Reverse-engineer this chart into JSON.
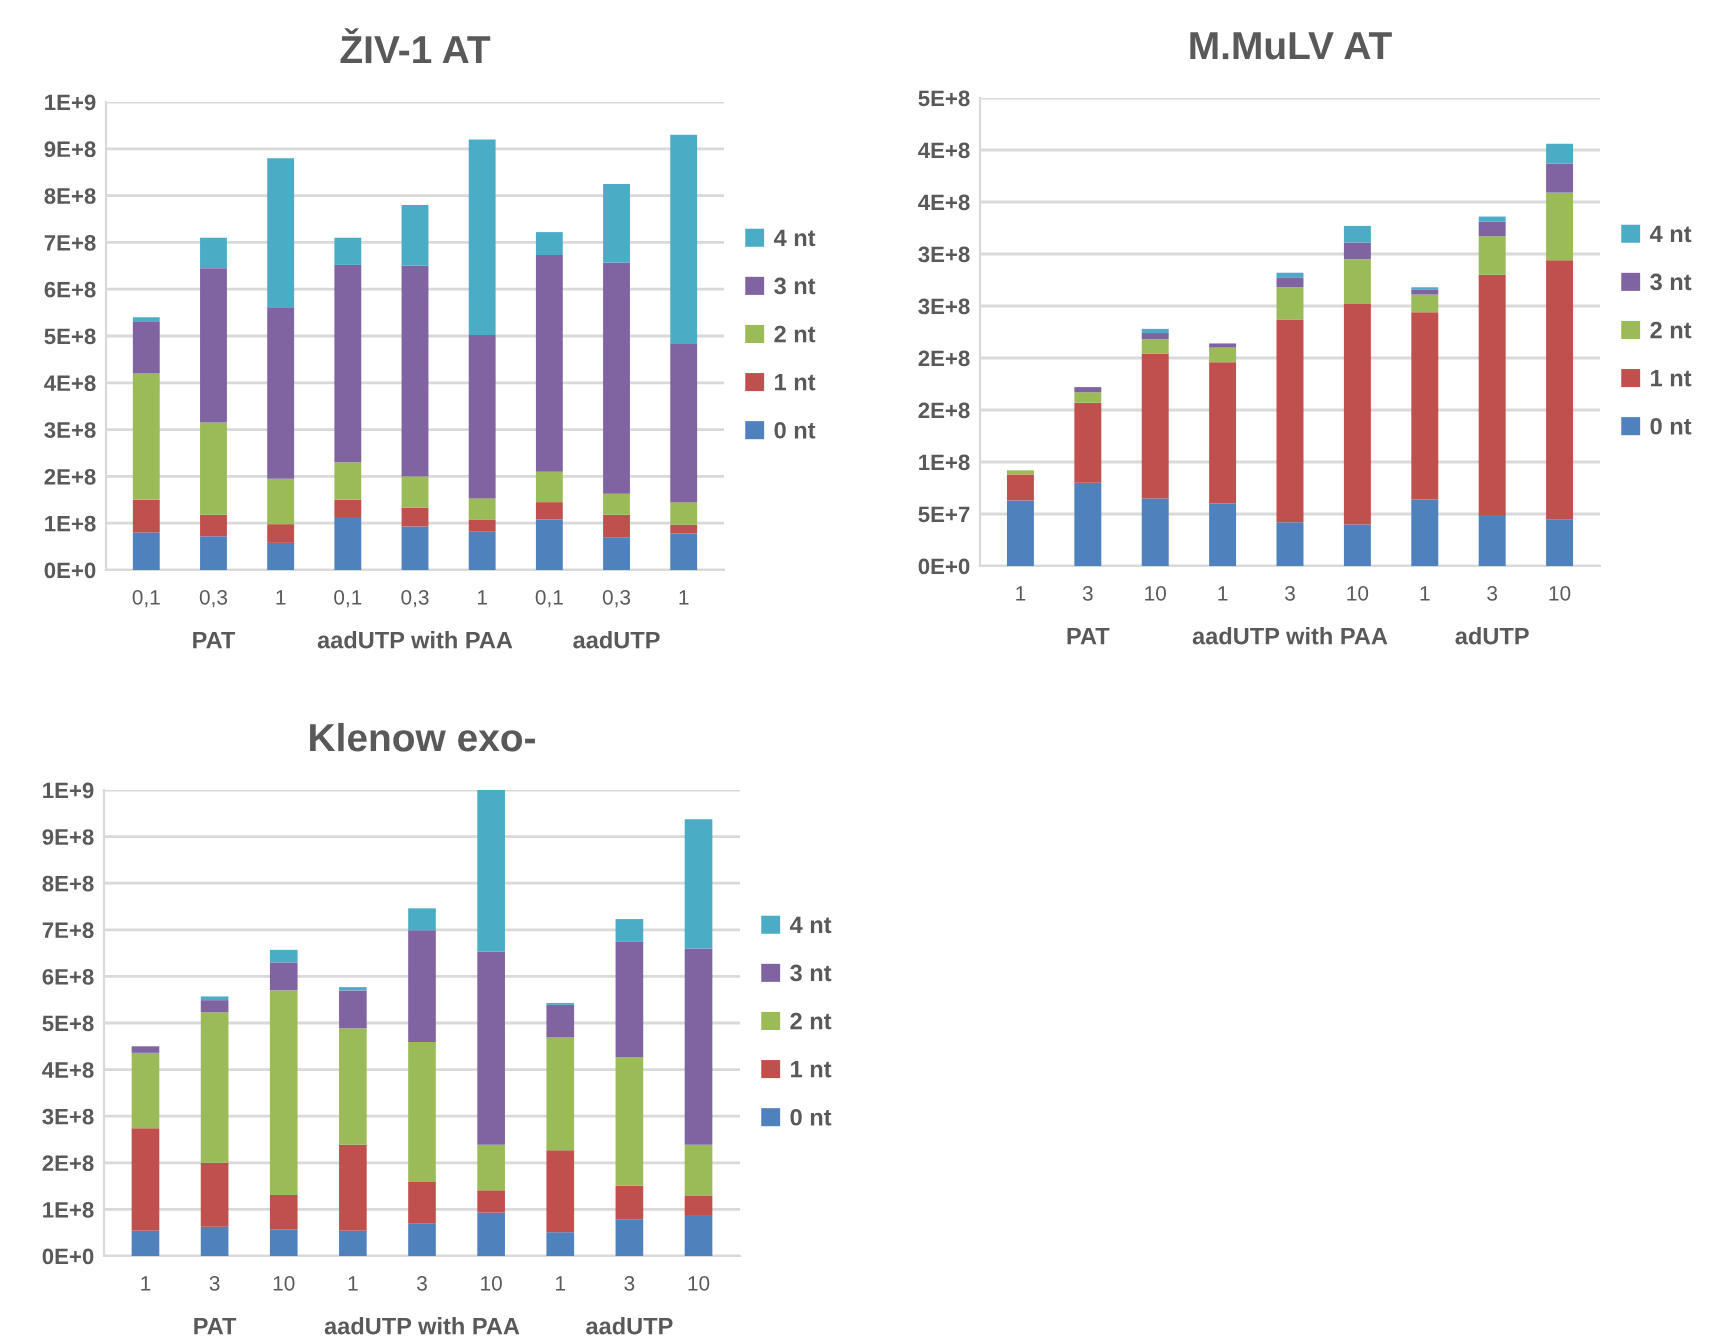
{
  "chart_data": [
    {
      "type": "bar",
      "title": "ŽIV-1 AT",
      "stacked": true,
      "grid": "y",
      "legend": "right",
      "categories": [
        "0,1",
        "0,3",
        "1",
        "0,1",
        "0,3",
        "1",
        "0,1",
        "0,3",
        "1"
      ],
      "series": [
        {
          "name": "0 nt",
          "color": "#4f81bd",
          "values": [
            80000000.0,
            72000000.0,
            58000000.0,
            113000000.0,
            93000000.0,
            82000000.0,
            108000000.0,
            70000000.0,
            78000000.0
          ]
        },
        {
          "name": "1 nt",
          "color": "#c0504d",
          "values": [
            70000000.0,
            46000000.0,
            40000000.0,
            37000000.0,
            40000000.0,
            25000000.0,
            37000000.0,
            48000000.0,
            19000000.0
          ]
        },
        {
          "name": "2 nt",
          "color": "#9bbb59",
          "values": [
            270000000.0,
            197000000.0,
            97000000.0,
            80000000.0,
            67000000.0,
            46000000.0,
            65000000.0,
            45000000.0,
            48000000.0
          ]
        },
        {
          "name": "3 nt",
          "color": "#8064a2",
          "values": [
            110000000.0,
            330000000.0,
            365000000.0,
            422000000.0,
            450000000.0,
            349000000.0,
            463000000.0,
            494000000.0,
            338000000.0
          ]
        },
        {
          "name": "4 nt",
          "color": "#4bacc6",
          "values": [
            10000000.0,
            65000000.0,
            320000000.0,
            58000000.0,
            130000000.0,
            418000000.0,
            49000000.0,
            168000000.0,
            447000000.0
          ]
        }
      ],
      "ylim": [
        0,
        1000000000.0
      ],
      "yticks": [
        {
          "value": 0,
          "label": "0E+0"
        },
        {
          "value": 100000000.0,
          "label": "1E+8"
        },
        {
          "value": 200000000.0,
          "label": "2E+8"
        },
        {
          "value": 300000000.0,
          "label": "3E+8"
        },
        {
          "value": 400000000.0,
          "label": "4E+8"
        },
        {
          "value": 500000000.0,
          "label": "5E+8"
        },
        {
          "value": 600000000.0,
          "label": "6E+8"
        },
        {
          "value": 700000000.0,
          "label": "7E+8"
        },
        {
          "value": 800000000.0,
          "label": "8E+8"
        },
        {
          "value": 900000000.0,
          "label": "9E+8"
        },
        {
          "value": 1000000000.0,
          "label": "1E+9"
        }
      ],
      "annotations": [
        "PAT",
        "aadUTP with PAA",
        "aadUTP"
      ]
    },
    {
      "type": "bar",
      "title": "M.MuLV AT",
      "stacked": true,
      "grid": "y",
      "legend": "right",
      "categories": [
        "1",
        "3",
        "10",
        "1",
        "3",
        "10",
        "1",
        "3",
        "10"
      ],
      "series": [
        {
          "name": "0 nt",
          "color": "#4f81bd",
          "values": [
            63000000.0,
            80000000.0,
            65000000.0,
            60000000.0,
            42000000.0,
            40000000.0,
            64000000.0,
            49000000.0,
            45000000.0
          ]
        },
        {
          "name": "1 nt",
          "color": "#c0504d",
          "values": [
            25000000.0,
            77000000.0,
            139000000.0,
            136000000.0,
            195000000.0,
            212000000.0,
            180000000.0,
            231000000.0,
            249000000.0
          ]
        },
        {
          "name": "2 nt",
          "color": "#9bbb59",
          "values": [
            4000000.0,
            10000000.0,
            14000000.0,
            14000000.0,
            31000000.0,
            43000000.0,
            17000000.0,
            37000000.0,
            65000000.0
          ]
        },
        {
          "name": "3 nt",
          "color": "#8064a2",
          "values": [
            0,
            5000000.0,
            6000000.0,
            4000000.0,
            9000000.0,
            16000000.0,
            5000000.0,
            14000000.0,
            28000000.0
          ]
        },
        {
          "name": "4 nt",
          "color": "#4bacc6",
          "values": [
            0,
            0,
            4000000.0,
            0,
            5000000.0,
            16000000.0,
            2000000.0,
            5000000.0,
            19000000.0
          ]
        }
      ],
      "ylim": [
        0,
        450000000.0
      ],
      "yticks": [
        {
          "value": 0,
          "label": "0E+0"
        },
        {
          "value": 50000000.0,
          "label": "5E+7"
        },
        {
          "value": 100000000.0,
          "label": "1E+8"
        },
        {
          "value": 150000000.0,
          "label": "2E+8"
        },
        {
          "value": 200000000.0,
          "label": "2E+8"
        },
        {
          "value": 250000000.0,
          "label": "3E+8"
        },
        {
          "value": 300000000.0,
          "label": "3E+8"
        },
        {
          "value": 350000000.0,
          "label": "4E+8"
        },
        {
          "value": 400000000.0,
          "label": "4E+8"
        },
        {
          "value": 450000000.0,
          "label": "5E+8"
        }
      ],
      "annotations": [
        "PAT",
        "aadUTP with PAA",
        "adUTP"
      ]
    },
    {
      "type": "bar",
      "title": "Klenow exo-",
      "stacked": true,
      "grid": "y",
      "legend": "right",
      "categories": [
        "1",
        "3",
        "10",
        "1",
        "3",
        "10",
        "1",
        "3",
        "10"
      ],
      "series": [
        {
          "name": "0 nt",
          "color": "#4f81bd",
          "values": [
            54000000.0,
            63000000.0,
            57000000.0,
            54000000.0,
            70000000.0,
            93000000.0,
            51000000.0,
            79000000.0,
            86000000.0
          ]
        },
        {
          "name": "1 nt",
          "color": "#c0504d",
          "values": [
            220000000.0,
            137000000.0,
            74000000.0,
            185000000.0,
            89000000.0,
            48000000.0,
            176000000.0,
            72000000.0,
            44000000.0
          ]
        },
        {
          "name": "2 nt",
          "color": "#9bbb59",
          "values": [
            162000000.0,
            323000000.0,
            439000000.0,
            250000000.0,
            300000000.0,
            98000000.0,
            242000000.0,
            276000000.0,
            109000000.0
          ]
        },
        {
          "name": "3 nt",
          "color": "#8064a2",
          "values": [
            14000000.0,
            26000000.0,
            60000000.0,
            81000000.0,
            240000000.0,
            414000000.0,
            70000000.0,
            247000000.0,
            421000000.0
          ]
        },
        {
          "name": "4 nt",
          "color": "#4bacc6",
          "values": [
            0,
            8000000.0,
            27000000.0,
            7000000.0,
            47000000.0,
            347000000.0,
            4000000.0,
            49000000.0,
            277000000.0
          ]
        }
      ],
      "ylim": [
        0,
        1000000000.0
      ],
      "yticks": [
        {
          "value": 0,
          "label": "0E+0"
        },
        {
          "value": 100000000.0,
          "label": "1E+8"
        },
        {
          "value": 200000000.0,
          "label": "2E+8"
        },
        {
          "value": 300000000.0,
          "label": "3E+8"
        },
        {
          "value": 400000000.0,
          "label": "4E+8"
        },
        {
          "value": 500000000.0,
          "label": "5E+8"
        },
        {
          "value": 600000000.0,
          "label": "6E+8"
        },
        {
          "value": 700000000.0,
          "label": "7E+8"
        },
        {
          "value": 800000000.0,
          "label": "8E+8"
        },
        {
          "value": 900000000.0,
          "label": "9E+8"
        },
        {
          "value": 1000000000.0,
          "label": "1E+9"
        }
      ],
      "annotations": [
        "PAT",
        "aadUTP with PAA",
        "aadUTP"
      ]
    }
  ]
}
